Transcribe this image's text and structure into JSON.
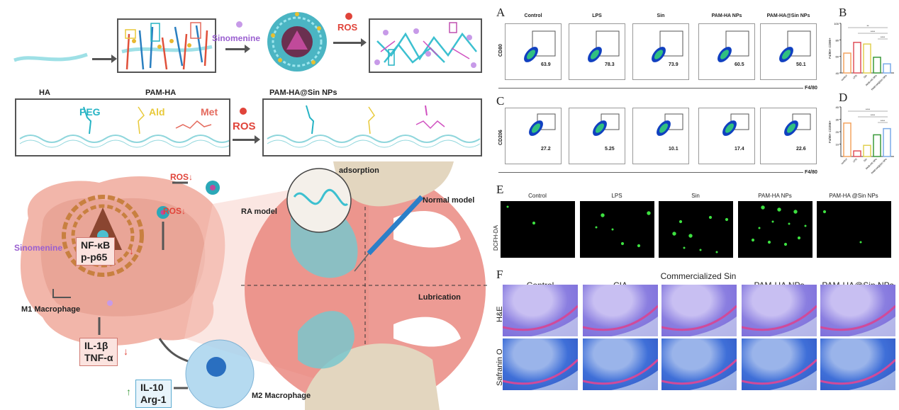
{
  "scheme": {
    "sinomenine_label": "Sinomenine",
    "ros_label": "ROS",
    "stage_labels": [
      "HA",
      "PAM-HA",
      "PAM-HA@Sin NPs"
    ],
    "groups": [
      {
        "label": "PEG",
        "color": "#25b3c4"
      },
      {
        "label": "Ald",
        "color": "#e8c93a"
      },
      {
        "label": "Met",
        "color": "#e46a5d"
      }
    ]
  },
  "mechanism": {
    "ros_down_1": "ROS↓",
    "ros_down_2": "ROS↓",
    "sinomenine_label": "Sinomenine",
    "nfkb": "NF-κB",
    "pp65": "p-p65",
    "m1_label": "M1 Macrophage",
    "il1b": "IL-1β",
    "tnfa": "TNF-α",
    "il10": "IL-10",
    "arg1": "Arg-1",
    "m2_label": "M2 Macrophage",
    "ra_model": "RA model",
    "normal_model": "Normal model",
    "adsorption": "adsorption",
    "lubrication": "Lubrication",
    "down_arrow": "↓",
    "up_arrow": "↑"
  },
  "panels": {
    "A": "A",
    "B": "B",
    "C": "C",
    "D": "D",
    "E": "E",
    "F": "F"
  },
  "flow": {
    "groups": [
      "Control",
      "LPS",
      "Sin",
      "PAM-HA NPs",
      "PAM-HA@Sin NPs"
    ],
    "x_axis": "F4/80",
    "row_A_label": "CD80",
    "row_C_label": "CD206",
    "row_A_values": [
      "63.9",
      "78.3",
      "73.9",
      "60.5",
      "50.1"
    ],
    "row_C_values": [
      "27.2",
      "5.25",
      "10.1",
      "17.4",
      "22.6"
    ]
  },
  "chart_data": [
    {
      "type": "bar",
      "panel": "B",
      "ylabel": "F4/80+ CD80+",
      "categories": [
        "control",
        "LPS",
        "Sin",
        "PAM-HA NPs",
        "PAM-HA@Sin NPs"
      ],
      "values": [
        64,
        77,
        75,
        59,
        51
      ],
      "ylim": [
        40,
        100
      ],
      "yticks": [
        "40",
        "60",
        "80",
        "100"
      ],
      "colors": [
        "#f4a460",
        "#e0505a",
        "#e0d050",
        "#3a9a3a",
        "#7aaae8"
      ],
      "significance": [
        "**",
        "****",
        "****"
      ]
    },
    {
      "type": "bar",
      "panel": "D",
      "ylabel": "F4/80+ CD206+",
      "categories": [
        "control",
        "LPS",
        "Sin",
        "PAM-HA NPs",
        "PAM-HA@Sin NPs"
      ],
      "values": [
        27,
        4.5,
        9,
        17.5,
        22.5
      ],
      "ylim": [
        0,
        40
      ],
      "yticks": [
        "10",
        "20",
        "30",
        "40"
      ],
      "colors": [
        "#f4a460",
        "#e0505a",
        "#e0d050",
        "#3a9a3a",
        "#7aaae8"
      ],
      "significance": [
        "****",
        "****",
        "****"
      ]
    }
  ],
  "fluorescence": {
    "groups": [
      "Control",
      "LPS",
      "Sin",
      "PAM-HA NPs",
      "PAM-HA @Sin NPs"
    ],
    "row_label": "DCFH-DA",
    "dots": [
      2,
      6,
      8,
      11,
      2
    ]
  },
  "histology": {
    "groups": [
      "Control",
      "CIA",
      "Commercialized Sin",
      "PAM-HA  NPs",
      "PAM-HA@Sin  NPs"
    ],
    "row_labels": [
      "H&E",
      "Safranin O"
    ]
  }
}
